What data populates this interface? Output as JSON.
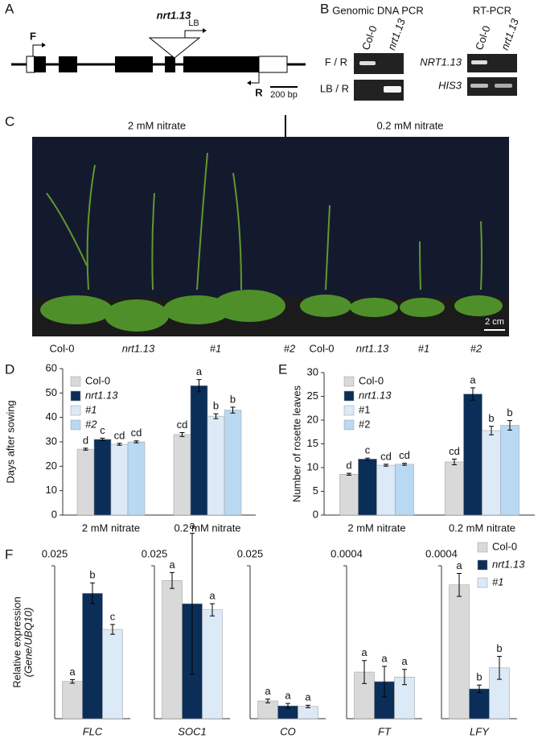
{
  "panel_labels": [
    "A",
    "B",
    "C",
    "D",
    "E",
    "F"
  ],
  "gene_diagram": {
    "title": "nrt1.13",
    "lb": "LB",
    "forward": "F",
    "reverse": "R",
    "scale": "200 bp"
  },
  "pcr": {
    "genomic_title": "Genomic DNA PCR",
    "rt_title": "RT-PCR",
    "lanes": [
      "Col-0",
      "nrt1.13"
    ],
    "genomic_rows": [
      "F / R",
      "LB / R"
    ],
    "rt_rows": [
      "NRT1.13",
      "HIS3"
    ]
  },
  "photo": {
    "conditions": [
      "2 mM nitrate",
      "0.2 mM nitrate"
    ],
    "genotypes": [
      "Col-0",
      "nrt1.13",
      "#1",
      "#2"
    ],
    "scale": "2 cm"
  },
  "chart_data": [
    {
      "type": "bar",
      "ylabel": "Days after sowing",
      "categories": [
        "2 mM nitrate",
        "0.2 mM nitrate"
      ],
      "ylim": [
        0,
        60
      ],
      "yticks": [
        0,
        10,
        20,
        30,
        40,
        50,
        60
      ],
      "legend": "top-left",
      "series": [
        {
          "name": "Col-0",
          "color": "#d9d9d9",
          "values": [
            27,
            33
          ],
          "errors": [
            0.4,
            0.8
          ],
          "letters": [
            "d",
            "cd"
          ]
        },
        {
          "name": "nrt1.13",
          "color": "#0b2e59",
          "italic": true,
          "values": [
            31,
            53
          ],
          "errors": [
            0.5,
            2.5
          ],
          "letters": [
            "c",
            "a"
          ]
        },
        {
          "name": "#1",
          "color": "#dce9f7",
          "italic": true,
          "values": [
            29,
            40.5
          ],
          "errors": [
            0.4,
            1.0
          ],
          "letters": [
            "cd",
            "b"
          ]
        },
        {
          "name": "#2",
          "color": "#b9d9f3",
          "italic": true,
          "values": [
            30,
            43
          ],
          "errors": [
            0.4,
            1.2
          ],
          "letters": [
            "cd",
            "b"
          ]
        }
      ]
    },
    {
      "type": "bar",
      "ylabel": "Number of rosette leaves",
      "categories": [
        "2 mM nitrate",
        "0.2 mM nitrate"
      ],
      "ylim": [
        0,
        30
      ],
      "yticks": [
        0,
        5,
        10,
        15,
        20,
        25,
        30
      ],
      "legend": "top-left",
      "series": [
        {
          "name": "Col-0",
          "color": "#d9d9d9",
          "values": [
            8.6,
            11.2
          ],
          "errors": [
            0.2,
            0.6
          ],
          "letters": [
            "d",
            "cd"
          ]
        },
        {
          "name": "nrt1.13",
          "color": "#0b2e59",
          "italic": true,
          "values": [
            11.8,
            25.5
          ],
          "errors": [
            0.2,
            1.3
          ],
          "letters": [
            "c",
            "a"
          ]
        },
        {
          "name": "#1",
          "color": "#dce9f7",
          "values": [
            10.5,
            17.8
          ],
          "errors": [
            0.2,
            0.9
          ],
          "letters": [
            "cd",
            "b"
          ]
        },
        {
          "name": "#2",
          "color": "#b9d9f3",
          "values": [
            10.7,
            18.9
          ],
          "errors": [
            0.2,
            1.0
          ],
          "letters": [
            "cd",
            "b"
          ]
        }
      ]
    },
    {
      "type": "bar",
      "ylabel": "Relative expression",
      "ylabel_note": "(Gene/UBQ10)",
      "categories": [
        "FLC"
      ],
      "ylim": [
        0,
        0.025
      ],
      "yticks": [
        0.025
      ],
      "series": [
        {
          "color": "#d9d9d9",
          "values": [
            0.0061
          ],
          "errors": [
            0.0003
          ],
          "letters": [
            "a"
          ]
        },
        {
          "color": "#0b2e59",
          "values": [
            0.0205
          ],
          "errors": [
            0.0017
          ],
          "letters": [
            "b"
          ]
        },
        {
          "color": "#dce9f7",
          "values": [
            0.0146
          ],
          "errors": [
            0.0008
          ],
          "letters": [
            "c"
          ]
        }
      ]
    },
    {
      "type": "bar",
      "categories": [
        "SOC1"
      ],
      "ylim": [
        0,
        0.025
      ],
      "yticks": [
        0.025
      ],
      "series": [
        {
          "color": "#d9d9d9",
          "values": [
            0.0226
          ],
          "errors": [
            0.0013
          ],
          "letters": [
            "a"
          ]
        },
        {
          "color": "#0b2e59",
          "values": [
            0.0188
          ],
          "errors": [
            0.0115
          ],
          "letters": [
            "a"
          ]
        },
        {
          "color": "#dce9f7",
          "values": [
            0.0178
          ],
          "errors": [
            0.001
          ],
          "letters": [
            "a"
          ]
        }
      ]
    },
    {
      "type": "bar",
      "categories": [
        "CO"
      ],
      "ylim": [
        0,
        0.025
      ],
      "yticks": [
        0.025
      ],
      "series": [
        {
          "color": "#d9d9d9",
          "values": [
            0.0029
          ],
          "errors": [
            0.0003
          ],
          "letters": [
            "a"
          ]
        },
        {
          "color": "#0b2e59",
          "values": [
            0.0021
          ],
          "errors": [
            0.0004
          ],
          "letters": [
            "a"
          ]
        },
        {
          "color": "#dce9f7",
          "values": [
            0.002
          ],
          "errors": [
            0.0002
          ],
          "letters": [
            "a"
          ]
        }
      ]
    },
    {
      "type": "bar",
      "categories": [
        "FT"
      ],
      "ylim": [
        0,
        0.0004
      ],
      "yticks": [
        0.0004
      ],
      "series": [
        {
          "color": "#d9d9d9",
          "values": [
            0.000122
          ],
          "errors": [
            3e-05
          ],
          "letters": [
            "a"
          ]
        },
        {
          "color": "#0b2e59",
          "values": [
            9.7e-05
          ],
          "errors": [
            4e-05
          ],
          "letters": [
            "a"
          ]
        },
        {
          "color": "#dce9f7",
          "values": [
            0.000109
          ],
          "errors": [
            2e-05
          ],
          "letters": [
            "a"
          ]
        }
      ]
    },
    {
      "type": "bar",
      "categories": [
        "LFY"
      ],
      "ylim": [
        0,
        0.0004
      ],
      "yticks": [
        0.0004
      ],
      "legend": "top-right",
      "series": [
        {
          "name": "Col-0",
          "color": "#d9d9d9",
          "values": [
            0.00035
          ],
          "errors": [
            3e-05
          ],
          "letters": [
            "a"
          ]
        },
        {
          "name": "nrt1.13",
          "color": "#0b2e59",
          "italic": true,
          "values": [
            7.8e-05
          ],
          "errors": [
            1e-05
          ],
          "letters": [
            "b"
          ]
        },
        {
          "name": "#1",
          "color": "#dce9f7",
          "italic": true,
          "values": [
            0.000133
          ],
          "errors": [
            3e-05
          ],
          "letters": [
            "b"
          ]
        }
      ]
    }
  ]
}
